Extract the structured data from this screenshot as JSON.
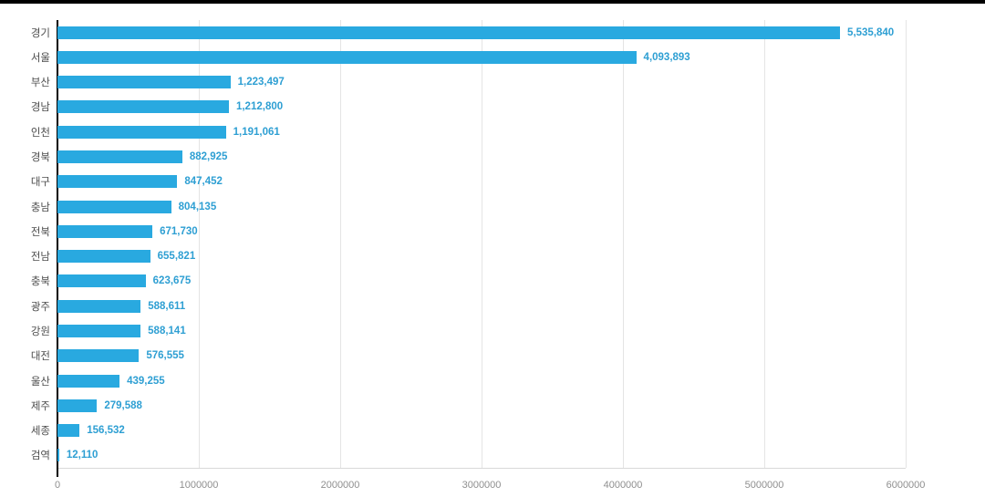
{
  "page": {
    "background_color": "#ffffff",
    "top_border_color": "#000000"
  },
  "chart_data": {
    "type": "bar",
    "orientation": "horizontal",
    "title": "",
    "xlabel": "",
    "ylabel": "",
    "categories": [
      "경기",
      "서울",
      "부산",
      "경남",
      "인천",
      "경북",
      "대구",
      "충남",
      "전북",
      "전남",
      "충북",
      "광주",
      "강원",
      "대전",
      "울산",
      "제주",
      "세종",
      "검역"
    ],
    "values": [
      5535840,
      4093893,
      1223497,
      1212800,
      1191061,
      882925,
      847452,
      804135,
      671730,
      655821,
      623675,
      588611,
      588141,
      576555,
      439255,
      279588,
      156532,
      12110
    ],
    "value_labels": [
      "5,535,840",
      "4,093,893",
      "1,223,497",
      "1,212,800",
      "1,191,061",
      "882,925",
      "847,452",
      "804,135",
      "671,730",
      "655,821",
      "623,675",
      "588,611",
      "588,141",
      "576,555",
      "439,255",
      "279,588",
      "156,532",
      "12,110"
    ],
    "x_ticks": [
      "0",
      "1000000",
      "2000000",
      "3000000",
      "4000000",
      "5000000",
      "6000000"
    ],
    "x_tick_values": [
      0,
      1000000,
      2000000,
      3000000,
      4000000,
      5000000,
      6000000
    ],
    "xlim": [
      0,
      6000000
    ],
    "grid": "vertical-only",
    "legend": "none",
    "bar_color": "#29a9e0",
    "value_label_color": "#2e9fd3",
    "category_label_color": "#4d4d4d",
    "tick_label_color": "#8f8f8f",
    "axis_line_color": "#000000",
    "gridline_color": "#e4e4e4"
  }
}
